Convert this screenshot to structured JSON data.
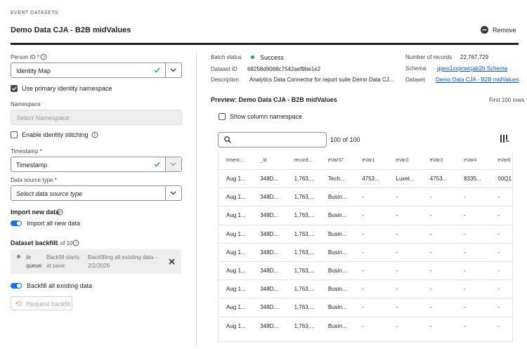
{
  "header": {
    "section": "EVENT DATASETS",
    "title": "Demo Data CJA - B2B midValues",
    "remove": "Remove"
  },
  "left": {
    "person_id": {
      "label": "Person ID *",
      "value": "Identity Map"
    },
    "use_primary": "Use primary identity namespace",
    "namespace": {
      "label": "Namespace",
      "placeholder": "Select Namespace"
    },
    "stitching": "Enable identity stitching",
    "timestamp": {
      "label": "Timestamp *",
      "value": "Timestamp"
    },
    "data_source": {
      "label": "Data source type *",
      "placeholder": "Select data source type"
    },
    "import": {
      "title": "Import new data",
      "toggle": "Import all new data"
    },
    "backfill": {
      "title": "Dataset backfill",
      "count": "1 of 10",
      "status": "In queue",
      "starts": "Backfill starts at save:",
      "desc": "Backfilling all existing data - 2/2/2026",
      "toggle": "Backfill all existing data",
      "button": "Request backfill"
    }
  },
  "info": {
    "batch_status": {
      "label": "Batch status",
      "value": "Success"
    },
    "dataset_id": {
      "label": "Dataset ID",
      "value": "68258d9068c7542aef9be1e2"
    },
    "description": {
      "label": "Description",
      "value": "Analytics Data Connector for report suite Demo Data CJ..."
    },
    "records": {
      "label": "Number of records",
      "value": "22,767,729"
    },
    "schema": {
      "label": "Schema",
      "value": "qgeo1xxpnwcjab2b Schema"
    },
    "dataset": {
      "label": "Dataset",
      "value": "Demo Data CJA - B2B midValues"
    }
  },
  "preview": {
    "title": "Preview: Demo Data CJA - B2B midValues",
    "rows_note": "First 100 rows",
    "show_namespace": "Show column namespace",
    "count": "100 of 100"
  },
  "table": {
    "columns": [
      "timest...",
      "_id",
      "record...",
      "eVar37",
      "eVar1",
      "eVar2",
      "eVar3",
      "eVar4",
      "eVar6"
    ],
    "rows": [
      [
        "Aug 1...",
        "348D...",
        "1,763,...",
        "Tech...",
        "4753...",
        "Luxel...",
        "4753...",
        "8335...",
        "00Q1..."
      ],
      [
        "Aug 1...",
        "348D...",
        "1,763,...",
        "Busin...",
        "-",
        "-",
        "-",
        "-",
        "-"
      ],
      [
        "Aug 1...",
        "348D...",
        "1,763,...",
        "Busin...",
        "-",
        "-",
        "-",
        "-",
        "-"
      ],
      [
        "Aug 1...",
        "348D...",
        "1,763,...",
        "Busin...",
        "-",
        "-",
        "-",
        "-",
        "-"
      ],
      [
        "Aug 1...",
        "348D...",
        "1,763,...",
        "Busin...",
        "-",
        "-",
        "-",
        "-",
        "-"
      ],
      [
        "Aug 1...",
        "348D...",
        "1,763,...",
        "Busin...",
        "-",
        "-",
        "-",
        "-",
        "-"
      ],
      [
        "Aug 1...",
        "348D...",
        "1,763,...",
        "Busin...",
        "-",
        "-",
        "-",
        "-",
        "-"
      ],
      [
        "Aug 1...",
        "348D...",
        "1,763,...",
        "Busin...",
        "-",
        "-",
        "-",
        "-",
        "-"
      ],
      [
        "Aug 1...",
        "348D...",
        "1,763,...",
        "Busin...",
        "-",
        "-",
        "-",
        "-",
        "-"
      ]
    ]
  }
}
